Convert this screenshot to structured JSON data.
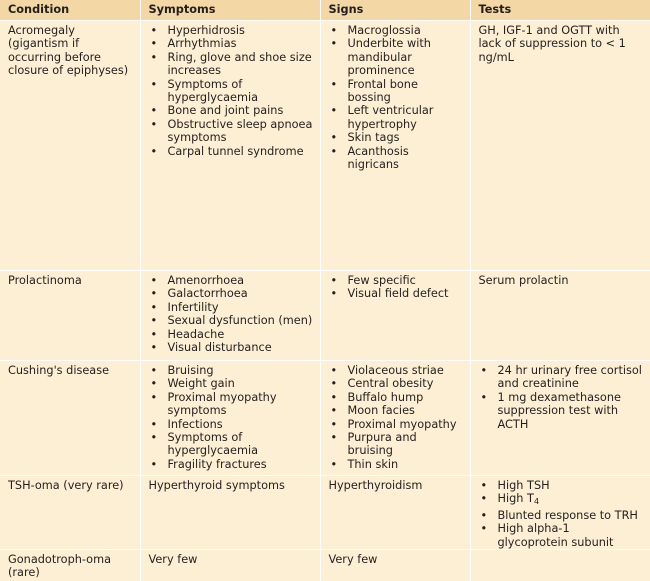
{
  "headers": [
    "Condition",
    "Symptoms",
    "Signs",
    "Tests"
  ],
  "rows": [
    {
      "condition": "Acromegaly (gigantism if occurring before closure of epiphyses)",
      "symptoms": [
        "Hyperhidrosis",
        "Arrhythmias",
        "Ring, glove and shoe size increases",
        "Symptoms of hyperglycaemia",
        "Bone and joint pains",
        "Obstructive sleep apnoea symptoms",
        "Carpal tunnel syndrome"
      ],
      "signs": [
        "Macroglossia",
        "Underbite with mandibular prominence",
        "Frontal bone bossing",
        "Left ventricular hypertrophy",
        "Skin tags",
        "Acanthosis nigricans"
      ],
      "tests_text": "GH, IGF-1 and OGTT with lack of suppression to < 1 ng/mL"
    },
    {
      "condition": "Prolactinoma",
      "symptoms": [
        "Amenorrhoea",
        "Galactorrhoea",
        "Infertility",
        "Sexual dysfunction (men)",
        "Headache",
        "Visual disturbance"
      ],
      "signs": [
        "Few specific",
        "Visual field defect"
      ],
      "tests_text": "Serum prolactin"
    },
    {
      "condition": "Cushing's disease",
      "symptoms": [
        "Bruising",
        "Weight gain",
        "Proximal myopathy symptoms",
        "Infections",
        "Symptoms of hyperglycaemia",
        "Fragility fractures"
      ],
      "signs": [
        "Violaceous striae",
        "Central obesity",
        "Buffalo hump",
        "Moon facies",
        "Proximal myopathy",
        "Purpura and bruising",
        "Thin skin"
      ],
      "tests": [
        "24 hr urinary free cortisol and creatinine",
        "1 mg dexamethasone suppression test with ACTH"
      ]
    },
    {
      "condition": "TSH-oma (very rare)",
      "symptoms_text": "Hyperthyroid symptoms",
      "signs_text": "Hyperthyroidism",
      "tests": [
        "High TSH",
        "High T",
        "Blunted response to TRH",
        "High alpha-1 glycoprotein subunit"
      ],
      "tests_sub": "4"
    },
    {
      "condition": "Gonadotroph-oma (rare)",
      "symptoms_text": "Very few",
      "signs_text": "Very few"
    }
  ]
}
